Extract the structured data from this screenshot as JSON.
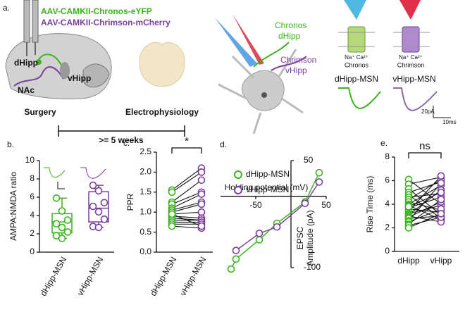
{
  "panel_a": {
    "label": "a.",
    "virus_1": "AAV-CAMKII-Chronos-eYFP",
    "virus_2": "AAV-CAMKII-Chrimson-mCherry",
    "region_d": "dHipp",
    "region_v": "vHipp",
    "region_nac": "NAc",
    "surgery": "Surgery",
    "ephys": "Electrophysiology",
    "interval": ">= 5 weeks",
    "light_1_opsin": "Chronos",
    "light_1_region": "dHipp",
    "light_2_opsin": "Chrimson",
    "light_2_region": "vHipp",
    "ions_1": "Na⁺ Ca²⁺",
    "channel_1": "Chronos",
    "ions_2": "Na⁺ Ca²⁺",
    "channel_2": "Chrimson",
    "trace_1": "dHipp-MSN",
    "trace_2": "vHipp-MSN",
    "scale_y": "20pA",
    "scale_x": "10ms"
  },
  "chart_data": [
    {
      "type": "box",
      "panel_label": "b.",
      "ylabel": "AMPA:NMDA ratio",
      "categories": [
        "dHipp-MSN",
        "vHipp-MSN"
      ],
      "groups": [
        {
          "color": "#3cb41e",
          "values": [
            5.9,
            4.5,
            3.5,
            3.1,
            2.7,
            2.2,
            1.8,
            1.5
          ],
          "box": {
            "whisker_low": 1.5,
            "q1": 2.1,
            "median": 3.3,
            "q3": 4.2,
            "whisker_high": 5.9
          }
        },
        {
          "color": "#7b3f9e",
          "values": [
            7.3,
            6.7,
            5.4,
            5.0,
            4.4,
            3.6,
            2.8,
            2.7
          ],
          "box": {
            "whisker_low": 2.7,
            "q1": 3.3,
            "median": 4.8,
            "q3": 6.6,
            "whisker_high": 7.3
          }
        }
      ],
      "ylim": [
        0,
        10
      ],
      "yticks": [
        0,
        2,
        4,
        6,
        8,
        10
      ]
    },
    {
      "type": "paired",
      "panel_label": "c.",
      "ylabel": "PPR",
      "annotation": "*",
      "categories": [
        "dHipp-MSN",
        "vHipp-MSN"
      ],
      "groups": [
        {
          "color": "#3cb41e",
          "values": [
            1.55,
            1.5,
            1.25,
            1.2,
            1.1,
            1.05,
            1.0,
            0.95,
            0.9,
            0.85,
            0.8,
            0.75,
            0.7,
            0.65,
            0.95
          ]
        },
        {
          "color": "#7b3f9e",
          "values": [
            2.1,
            2.0,
            1.8,
            1.5,
            1.45,
            1.25,
            1.2,
            1.0,
            0.85,
            0.8,
            0.8,
            0.75,
            0.7,
            0.6,
            0.65
          ]
        }
      ],
      "ylim": [
        0,
        2.5
      ],
      "yticks": [
        {
          "value": 0,
          "label": "0.0"
        },
        0.5,
        {
          "value": 1,
          "label": "1.0"
        },
        1.5,
        {
          "value": 2,
          "label": "2.0"
        },
        2.5
      ]
    },
    {
      "type": "scatter",
      "panel_label": "d.",
      "xlabel": "Holding potential (mV)",
      "ylabel_lines": [
        "EPSC",
        "Amplitude (pA)"
      ],
      "series": [
        {
          "name": "dHipp-MSN",
          "color": "#3cb41e",
          "x": [
            -85,
            -78,
            -45,
            -20,
            20,
            40
          ],
          "values": [
            -102,
            -88,
            -61,
            -38,
            -8,
            33
          ]
        },
        {
          "name": "vHipp-MSN",
          "color": "#7b3f9e",
          "x": [
            -78,
            -45,
            -20,
            20,
            40
          ],
          "values": [
            -76,
            -52,
            -43,
            -10,
            20
          ]
        }
      ],
      "xlim": [
        -100,
        50
      ],
      "xticks": [
        -50,
        50
      ],
      "ylim": [
        -100,
        50
      ],
      "yticks": [
        50,
        -100
      ],
      "legend": "top-left"
    },
    {
      "type": "paired",
      "panel_label": "e.",
      "ylabel": "Rise Time (ms)",
      "annotation": "ns",
      "categories": [
        "dHipp",
        "vHipp"
      ],
      "groups": [
        {
          "color": "#3cb41e",
          "values": [
            6.1,
            5.7,
            5.3,
            5.0,
            4.8,
            4.6,
            4.4,
            4.2,
            4.0,
            3.9,
            3.7,
            3.6,
            3.4,
            3.2,
            3.1,
            3.0,
            2.9,
            2.8,
            2.6,
            2.5,
            2.3,
            2.2,
            2.0,
            3.8
          ]
        },
        {
          "color": "#7b3f9e",
          "values": [
            4.0,
            6.3,
            3.1,
            5.9,
            2.8,
            4.9,
            6.1,
            3.5,
            5.6,
            2.7,
            4.6,
            3.3,
            6.4,
            3.9,
            5.2,
            2.5,
            4.2,
            3.0,
            5.8,
            3.6,
            4.4,
            2.9,
            3.2,
            5.0
          ]
        }
      ],
      "ylim": [
        0,
        8
      ],
      "yticks": [
        0,
        2,
        4,
        6,
        8
      ]
    }
  ]
}
